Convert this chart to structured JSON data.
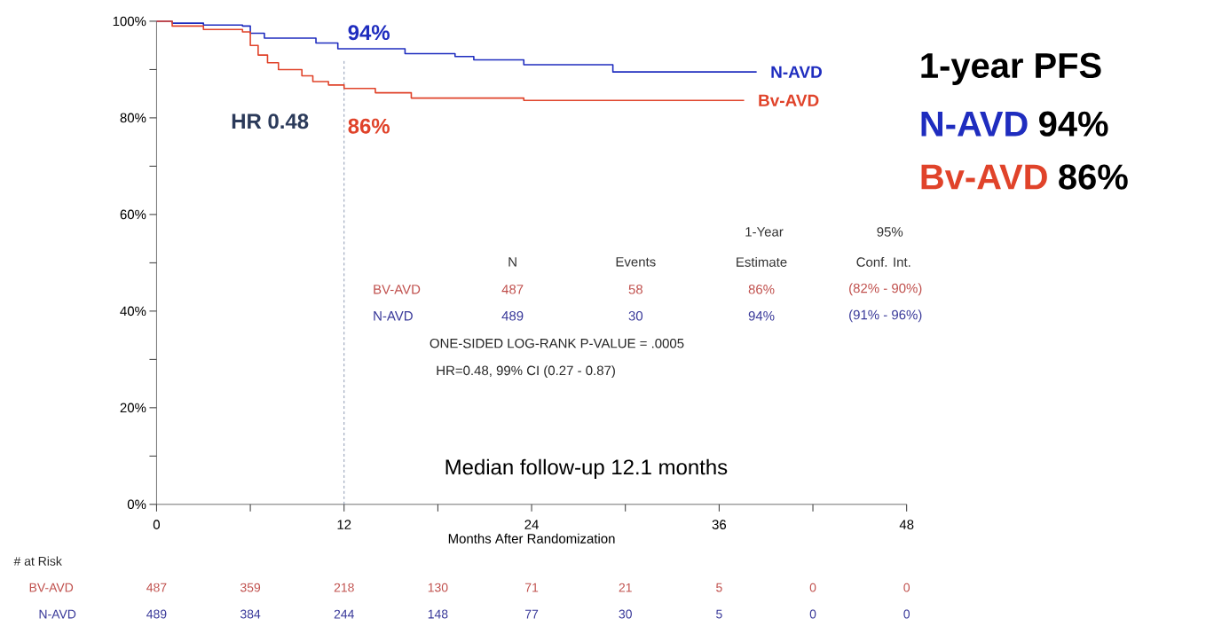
{
  "chart_data": {
    "type": "step",
    "xlabel": "Months After Randomization",
    "xlim": [
      0,
      48
    ],
    "xticks": [
      0,
      {
        "value": 6,
        "label": null
      },
      12,
      {
        "value": 18,
        "label": null
      },
      24,
      {
        "value": 30,
        "label": null
      },
      36,
      {
        "value": 42,
        "label": null
      },
      48
    ],
    "ylim": [
      0,
      100
    ],
    "yticks": [
      {
        "value": 0,
        "label": "0%"
      },
      {
        "value": 10,
        "label": null
      },
      {
        "value": 20,
        "label": "20%"
      },
      {
        "value": 30,
        "label": null
      },
      {
        "value": 40,
        "label": "40%"
      },
      {
        "value": 50,
        "label": null
      },
      {
        "value": 60,
        "label": "60%"
      },
      {
        "value": 70,
        "label": null
      },
      {
        "value": 80,
        "label": "80%"
      },
      {
        "value": 90,
        "label": null
      },
      {
        "value": 100,
        "label": "100%"
      }
    ],
    "series": [
      {
        "name": "N-AVD",
        "color": "#1f2dbf",
        "x": [
          0,
          1,
          3,
          5.5,
          6,
          6.9,
          10.2,
          11.6,
          15.9,
          19.1,
          20.3,
          23.5,
          29.2,
          38.4
        ],
        "values": [
          100,
          99.6,
          99.2,
          99,
          97.5,
          96.5,
          95.5,
          94.3,
          93.3,
          92.7,
          92,
          91,
          89.5,
          89.5
        ]
      },
      {
        "name": "Bv-AVD",
        "color": "#e0432a",
        "x": [
          0,
          1,
          3,
          5.5,
          6,
          6.5,
          7.1,
          7.8,
          9.3,
          10,
          11,
          12,
          14,
          16.3,
          23.5,
          37.6
        ],
        "values": [
          100,
          99,
          98.3,
          97.8,
          95,
          93,
          91.4,
          90,
          88.7,
          87.5,
          86.8,
          86.1,
          85.2,
          84.1,
          83.6,
          83.6
        ]
      }
    ],
    "ref_lines": [
      {
        "axis": "x",
        "value": 12,
        "color": "#7080a0",
        "line_style": "dashed"
      }
    ],
    "annotations": [
      {
        "text": "94%",
        "x": 12,
        "y": 94
      },
      {
        "text": "86%",
        "x": 12,
        "y": 86
      },
      "HR 0.48",
      "Median follow-up 12.1 months",
      "1-year PFS",
      "N-AVD",
      "94%",
      "Bv-AVD",
      "86%",
      "1-Year",
      "95%",
      "N",
      "Events",
      "Estimate",
      "Conf. Int.",
      "BV-AVD",
      "487",
      "58",
      "86%",
      "(82% - 90%)",
      "N-AVD",
      "489",
      "30",
      "94%",
      "(91% - 96%)",
      "ONE-SIDED LOG-RANK P-VALUE = .0005",
      "HR=0.48, 99% CI (0.27 - 0.87)",
      "# at Risk",
      "BV-AVD",
      "487",
      "359",
      "218",
      "130",
      "71",
      "21",
      "5",
      "0",
      "0",
      "N-AVD",
      "489",
      "384",
      "244",
      "148",
      "77",
      "30",
      "5",
      "0",
      "0"
    ]
  }
}
